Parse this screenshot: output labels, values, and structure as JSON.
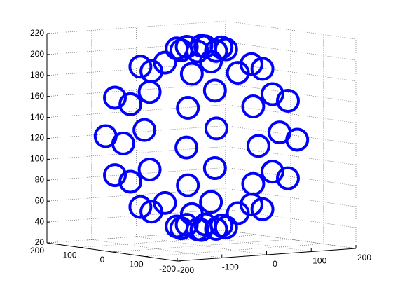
{
  "chart_data": {
    "type": "scatter3d",
    "color": "#0000ff",
    "grid": true,
    "x": [
      0,
      45,
      32,
      0,
      -32,
      -45,
      -32,
      0,
      32,
      112,
      79,
      0,
      -79,
      -112,
      -79,
      0,
      79,
      159,
      112,
      0,
      -112,
      -159,
      -112,
      0,
      112,
      175,
      124,
      0,
      -124,
      -175,
      -124,
      0,
      124,
      159,
      112,
      0,
      -112,
      -159,
      -112,
      0,
      112,
      112,
      79,
      0,
      -79,
      -112,
      -79,
      0,
      79,
      45,
      32,
      0,
      -32,
      -45,
      -32,
      0,
      32,
      0
    ],
    "y": [
      0,
      0,
      32,
      45,
      32,
      0,
      -32,
      -45,
      -32,
      0,
      79,
      112,
      79,
      0,
      -79,
      -112,
      -79,
      0,
      112,
      159,
      112,
      0,
      -112,
      -159,
      -112,
      0,
      124,
      175,
      124,
      0,
      -124,
      -175,
      -124,
      0,
      112,
      159,
      112,
      0,
      -112,
      -159,
      -112,
      0,
      79,
      112,
      79,
      0,
      -79,
      -112,
      -79,
      0,
      32,
      45,
      32,
      0,
      -32,
      -45,
      -32,
      0
    ],
    "z": [
      35,
      38,
      38,
      38,
      38,
      38,
      38,
      38,
      38,
      56,
      56,
      56,
      56,
      56,
      56,
      56,
      56,
      86,
      86,
      86,
      86,
      86,
      86,
      86,
      86,
      123,
      123,
      123,
      123,
      123,
      123,
      123,
      123,
      160,
      160,
      160,
      160,
      160,
      160,
      160,
      160,
      190,
      190,
      190,
      190,
      190,
      190,
      190,
      190,
      208,
      208,
      208,
      208,
      208,
      208,
      208,
      208,
      211
    ],
    "xlim": [
      -200,
      200
    ],
    "xticks": [
      -200,
      -100,
      0,
      100,
      200
    ],
    "ylim": [
      -200,
      200
    ],
    "yticks": [
      -200,
      -100,
      0,
      100,
      200
    ],
    "zlim": [
      20,
      220
    ],
    "zticks": [
      20,
      40,
      60,
      80,
      100,
      120,
      140,
      160,
      180,
      200,
      220
    ]
  }
}
